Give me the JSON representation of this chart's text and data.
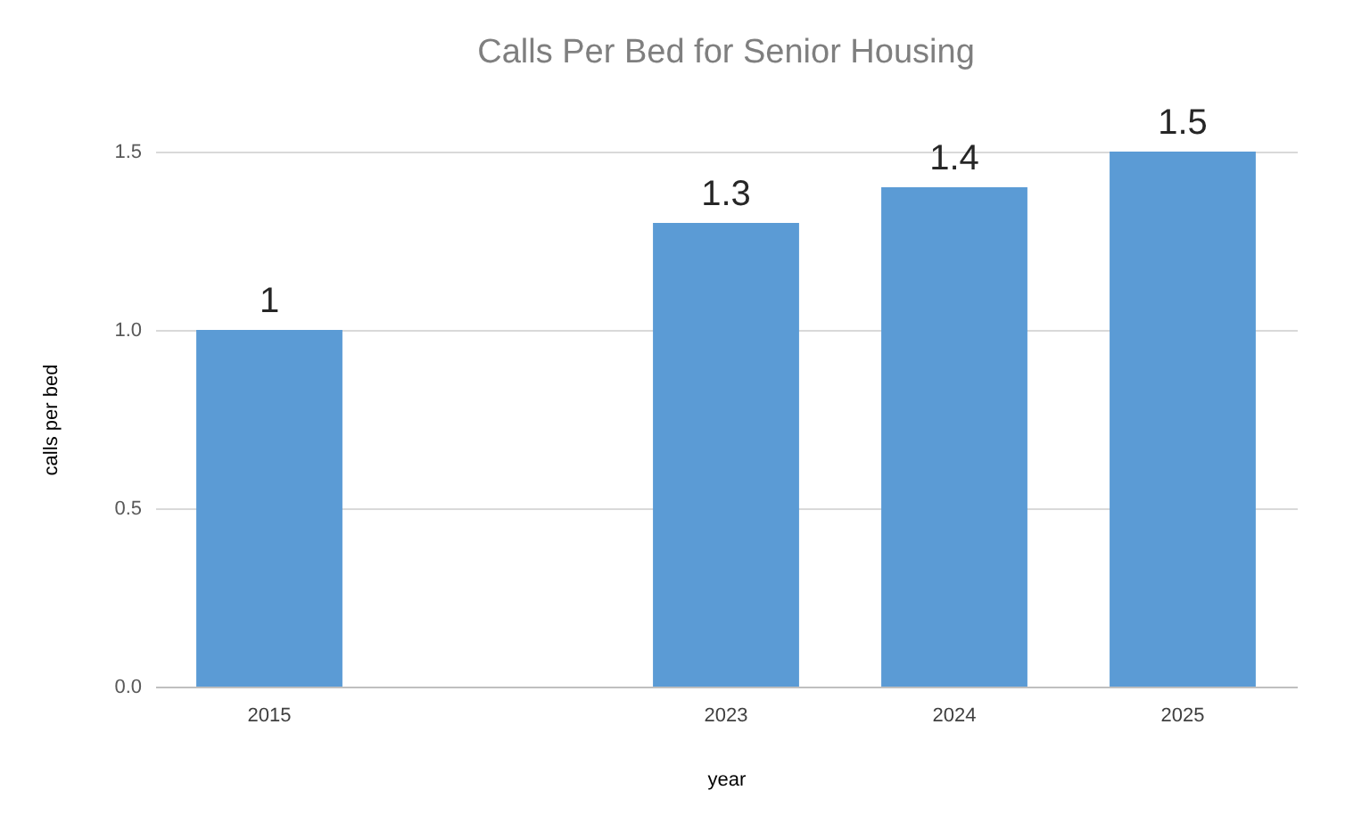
{
  "chart_data": {
    "type": "bar",
    "title": "Calls Per Bed for Senior Housing",
    "xlabel": "year",
    "ylabel": "calls per bed",
    "categories": [
      "2015",
      null,
      "2023",
      "2024",
      "2025"
    ],
    "values": [
      1,
      null,
      1.3,
      1.4,
      1.5
    ],
    "color": "#5b9bd5",
    "ylim": [
      0,
      1.5
    ],
    "yticks": [
      {
        "value": 0,
        "label": "0.0"
      },
      {
        "value": 0.5,
        "label": "0.5"
      },
      {
        "value": 1,
        "label": "1.0"
      },
      1.5
    ],
    "grid": "y",
    "data_labels": true
  }
}
